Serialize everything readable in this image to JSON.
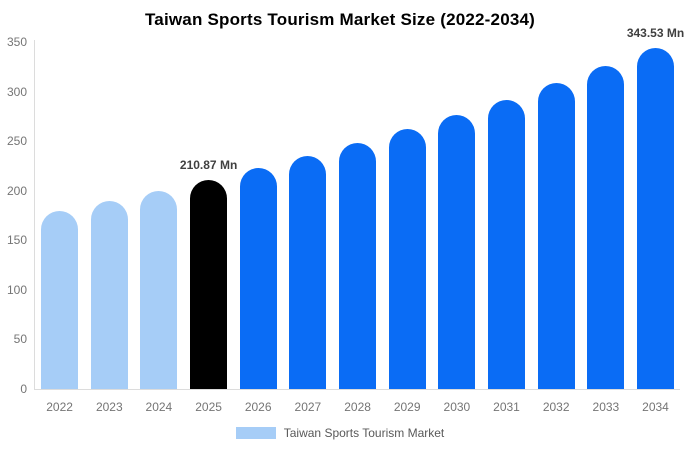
{
  "legend": {
    "label": "Taiwan Sports Tourism Market"
  },
  "colors": {
    "primary": "#0a6cf5",
    "light": "#a6cdf7",
    "highlight": "#000000",
    "axis_line": "#dcdcdc",
    "tick_text": "#757575",
    "annotation_text": "#404040",
    "legend_text": "#595959",
    "title_text": "#000000"
  },
  "chart_data": {
    "type": "bar",
    "title": "Taiwan Sports Tourism Market Size (2022-2034)",
    "series_name": "Taiwan Sports Tourism Market",
    "categories": [
      "2022",
      "2023",
      "2024",
      "2025",
      "2026",
      "2027",
      "2028",
      "2029",
      "2030",
      "2031",
      "2032",
      "2033",
      "2034"
    ],
    "values": [
      179.2,
      189.2,
      199.7,
      210.87,
      222.6,
      235.0,
      248.1,
      261.9,
      276.5,
      291.9,
      308.2,
      325.4,
      343.53
    ],
    "unit": "Mn",
    "bar_color_keys": [
      "light",
      "light",
      "light",
      "highlight",
      "primary",
      "primary",
      "primary",
      "primary",
      "primary",
      "primary",
      "primary",
      "primary",
      "primary"
    ],
    "annotations": [
      {
        "category": "2025",
        "text": "210.87 Mn"
      },
      {
        "category": "2034",
        "text": "343.53 Mn"
      }
    ],
    "ylim": [
      0,
      350
    ],
    "yticks": [
      0,
      50,
      100,
      150,
      200,
      250,
      300,
      350
    ],
    "grid": false,
    "legend_position": "bottom"
  }
}
